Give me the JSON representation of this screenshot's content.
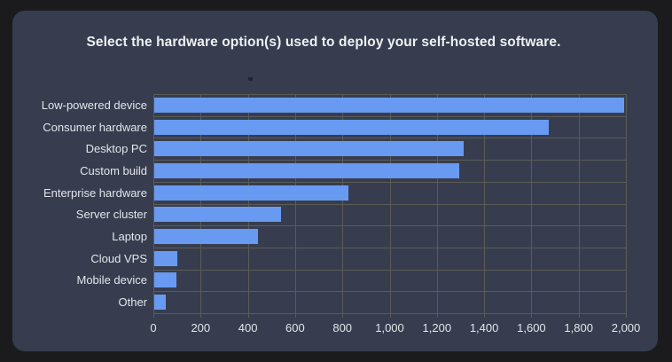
{
  "card": {
    "title": "Select the hardware option(s) used to deploy your self-hosted software."
  },
  "chart_data": {
    "type": "bar",
    "orientation": "horizontal",
    "title": "Select the hardware option(s) used to deploy your self-hosted software.",
    "categories": [
      "Low-powered device",
      "Consumer hardware",
      "Desktop PC",
      "Custom build",
      "Enterprise hardware",
      "Server cluster",
      "Laptop",
      "Cloud VPS",
      "Mobile device",
      "Other"
    ],
    "values": [
      1990,
      1670,
      1310,
      1292,
      820,
      538,
      438,
      97,
      93,
      47
    ],
    "xlabel": "",
    "ylabel": "",
    "xlim": [
      0,
      2000
    ],
    "x_tick_values": [
      0,
      200,
      400,
      600,
      800,
      1000,
      1200,
      1400,
      1600,
      1800,
      2000
    ],
    "x_tick_labels": [
      "0",
      "200",
      "400",
      "600",
      "800",
      "1,000",
      "1,200",
      "1,400",
      "1,600",
      "1,800",
      "2,000"
    ],
    "grid": true,
    "legend_position": "top-center",
    "colors": {
      "bar": "#689af2",
      "page_background": "#1b1b1d",
      "card_background": "#373d4f",
      "gridline": "#5a5c55",
      "label_text": "#e3e5e9",
      "title_text": "#eef0f3"
    }
  }
}
